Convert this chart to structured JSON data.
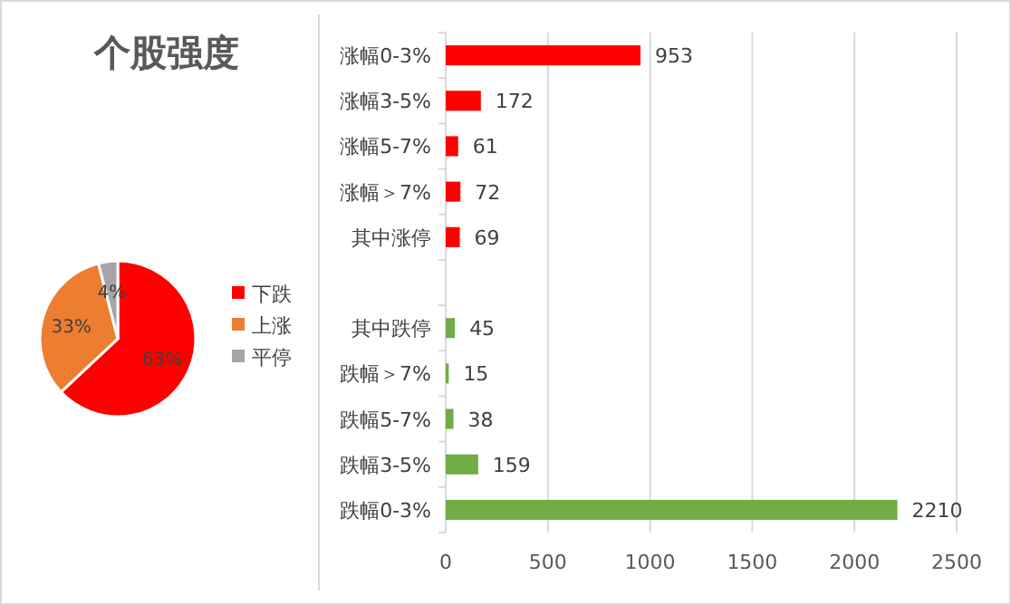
{
  "chart_data": [
    {
      "type": "pie",
      "title": "个股强度",
      "categories": [
        "下跌",
        "上涨",
        "平停"
      ],
      "values": [
        63,
        33,
        4
      ],
      "value_labels": [
        "63%",
        "33%",
        "4%"
      ],
      "colors": [
        "#ff0000",
        "#ed7d31",
        "#a5a5a5"
      ],
      "legend": "right"
    },
    {
      "type": "bar",
      "orientation": "horizontal",
      "categories": [
        "涨幅0-3%",
        "涨幅3-5%",
        "涨幅5-7%",
        "涨幅＞7%",
        "其中涨停",
        null,
        "其中跌停",
        "跌幅＞7%",
        "跌幅5-7%",
        "跌幅3-5%",
        "跌幅0-3%"
      ],
      "values": [
        953,
        172,
        61,
        72,
        69,
        null,
        45,
        15,
        38,
        159,
        2210
      ],
      "colors": [
        "#ff0000",
        "#ff0000",
        "#ff0000",
        "#ff0000",
        "#ff0000",
        null,
        "#70ad47",
        "#70ad47",
        "#70ad47",
        "#70ad47",
        "#70ad47"
      ],
      "xlim": [
        0,
        2500
      ],
      "xticks": [
        0,
        500,
        1000,
        1500,
        2000,
        2500
      ],
      "grid": "x",
      "data_labels": true
    }
  ]
}
